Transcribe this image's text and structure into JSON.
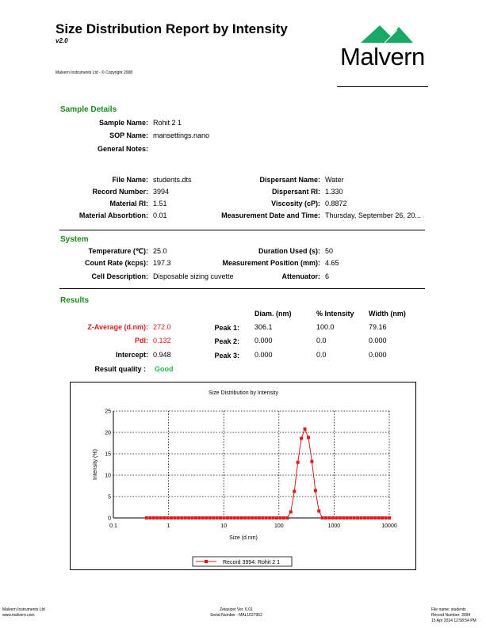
{
  "header": {
    "title": "Size Distribution Report by Intensity",
    "version": "v2.0",
    "copyright": "Malvern Instruments Ltd - © Copyright 2008",
    "logo_text": "Malvern",
    "brand_color": "#1aa866"
  },
  "sample_details": {
    "heading": "Sample Details",
    "left": [
      {
        "label": "Sample Name:",
        "value": "Rohit 2 1"
      },
      {
        "label": "SOP Name:",
        "value": "mansettings.nano"
      },
      {
        "label": "General Notes:",
        "value": ""
      }
    ],
    "file_left": [
      {
        "label": "File Name:",
        "value": "students.dts"
      },
      {
        "label": "Record Number:",
        "value": "3994"
      },
      {
        "label": "Material RI:",
        "value": "1.51"
      },
      {
        "label": "Material Absorbtion:",
        "value": "0.01"
      }
    ],
    "file_right": [
      {
        "label": "Dispersant Name:",
        "value": "Water"
      },
      {
        "label": "Dispersant RI:",
        "value": "1.330"
      },
      {
        "label": "Viscosity (cP):",
        "value": "0.8872"
      },
      {
        "label": "Measurement Date and Time:",
        "value": "Thursday, September 26, 20..."
      }
    ]
  },
  "system": {
    "heading": "System",
    "left": [
      {
        "label": "Temperature (℃):",
        "value": "25.0"
      },
      {
        "label": "Count Rate (kcps):",
        "value": "197.3"
      },
      {
        "label": "Cell Description:",
        "value": "Disposable sizing cuvette"
      }
    ],
    "right": [
      {
        "label": "Duration Used (s):",
        "value": "50"
      },
      {
        "label": "Measurement Position (mm):",
        "value": "4.65"
      },
      {
        "label": "Attenuator:",
        "value": "6"
      }
    ]
  },
  "results": {
    "heading": "Results",
    "columns": [
      "Diam. (nm)",
      "% Intensity",
      "Width (nm)"
    ],
    "left": [
      {
        "label": "Z-Average (d.nm):",
        "value": "272.0"
      },
      {
        "label": "PdI:",
        "value": "0.132"
      },
      {
        "label": "Intercept:",
        "value": "0.948"
      }
    ],
    "peaks": [
      {
        "label": "Peak 1:",
        "diam": "306.1",
        "intensity": "100.0",
        "width": "79.16"
      },
      {
        "label": "Peak 2:",
        "diam": "0.000",
        "intensity": "0.0",
        "width": "0.000"
      },
      {
        "label": "Peak 3:",
        "diam": "0.000",
        "intensity": "0.0",
        "width": "0.000"
      }
    ],
    "quality_label": "Result quality :",
    "quality_value": "Good"
  },
  "chart_data": {
    "type": "line",
    "title": "Size Distribution by Intensity",
    "xlabel": "Size (d.nm)",
    "ylabel": "Intensity (%)",
    "x_scale": "log",
    "xlim": [
      0.1,
      10000
    ],
    "ylim": [
      0,
      25
    ],
    "grid": true,
    "legend": "bottom",
    "x_ticks": [
      "0.1",
      "1",
      "10",
      "100",
      "1000",
      "10000"
    ],
    "y_ticks": [
      "0",
      "5",
      "10",
      "15",
      "20",
      "25"
    ],
    "series": [
      {
        "name": "Record 3994: Rohit 2 1",
        "color": "#e01b1b",
        "marker": "square",
        "x": [
          0.4,
          0.4632,
          0.5365,
          0.6213,
          0.7195,
          0.8332,
          0.9649,
          1.117,
          1.294,
          1.499,
          1.736,
          2.01,
          2.328,
          2.696,
          3.122,
          3.615,
          4.187,
          4.849,
          5.615,
          6.503,
          7.531,
          8.721,
          10.1,
          11.7,
          13.54,
          15.69,
          18.17,
          21.04,
          24.36,
          28.21,
          32.67,
          37.84,
          43.82,
          50.75,
          58.77,
          68.06,
          78.82,
          91.28,
          105.7,
          122.4,
          141.8,
          164.2,
          190.1,
          220.2,
          255.0,
          295.3,
          342.0,
          396.1,
          458.7,
          531.2,
          615.1,
          712.4,
          825.0,
          955.4,
          1106,
          1281,
          1484,
          1718,
          1990,
          2305,
          2669,
          3091,
          3580,
          4145,
          4801,
          5560,
          6439,
          7456,
          8635,
          10000
        ],
        "y": [
          0,
          0,
          0,
          0,
          0,
          0,
          0,
          0,
          0,
          0,
          0,
          0,
          0,
          0,
          0,
          0,
          0,
          0,
          0,
          0,
          0,
          0,
          0,
          0,
          0,
          0,
          0,
          0,
          0,
          0,
          0,
          0,
          0,
          0,
          0,
          0,
          0,
          0,
          0,
          0,
          0,
          1.4,
          6.2,
          13.0,
          18.6,
          20.8,
          18.8,
          13.2,
          6.4,
          1.6,
          0,
          0,
          0,
          0,
          0,
          0,
          0,
          0,
          0,
          0,
          0,
          0,
          0,
          0,
          0,
          0,
          0,
          0,
          0,
          0
        ]
      }
    ]
  },
  "footer": {
    "left": [
      "Malvern Instruments Ltd",
      "www.malvern.com"
    ],
    "center": [
      "Zetasizer Ver. 6.01",
      "Serial Number : MAL1027952"
    ],
    "right": [
      "File name: students",
      "Record Number: 3994",
      "15 Apr 2014 12:58:54 PM"
    ]
  }
}
